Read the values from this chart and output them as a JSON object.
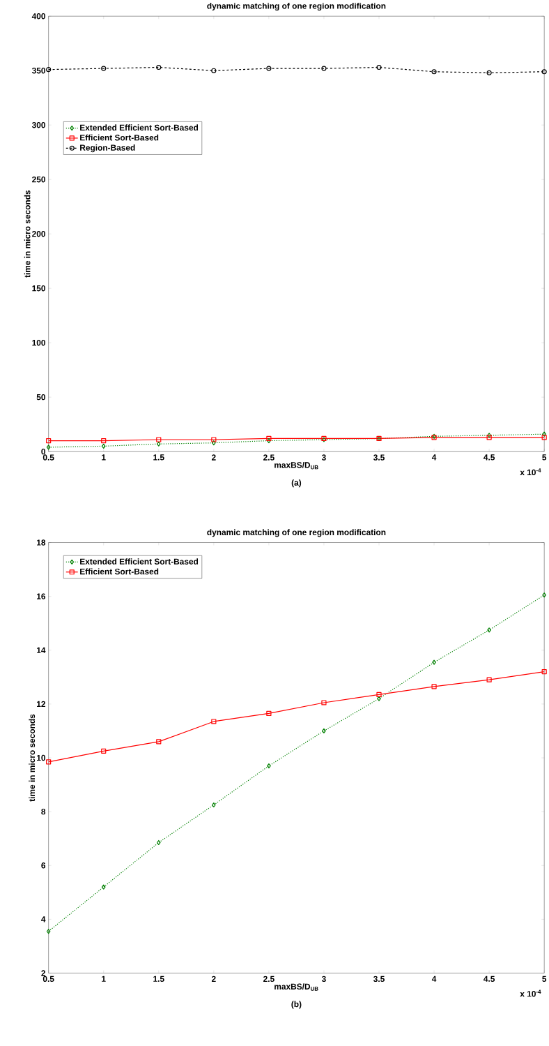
{
  "chart_data": [
    {
      "type": "line",
      "title": "dynamic matching of one region modification",
      "xlabel": "maxBS/D$_{UB}$",
      "ylabel": "time in micro seconds",
      "annotations": [
        "x 10$^{-4}$",
        "(a)"
      ],
      "x": [
        0.5,
        1,
        1.5,
        2,
        2.5,
        3,
        3.5,
        4,
        4.5,
        5
      ],
      "xlim": [
        0.5,
        5
      ],
      "xticks": [
        0.5,
        1,
        1.5,
        2,
        2.5,
        3,
        3.5,
        4,
        4.5,
        5
      ],
      "ylim": [
        0,
        400
      ],
      "yticks": [
        0,
        50,
        100,
        150,
        200,
        250,
        300,
        350,
        400
      ],
      "grid": false,
      "legend": "left",
      "series": [
        {
          "name": "Extended Efficient Sort-Based",
          "color": "#008000",
          "marker": "diamond",
          "line_style": "dotted",
          "values": [
            4,
            5,
            7,
            8,
            10,
            11,
            12,
            14,
            15,
            16
          ]
        },
        {
          "name": "Efficient Sort-Based",
          "color": "#ff0000",
          "marker": "square",
          "line_style": "solid",
          "values": [
            10,
            10,
            11,
            11,
            12,
            12,
            12,
            13,
            13,
            13
          ]
        },
        {
          "name": "Region-Based",
          "color": "#000000",
          "marker": "circle",
          "line_style": "dashed",
          "values": [
            351,
            352,
            353,
            350,
            352,
            352,
            353,
            349,
            348,
            349
          ]
        }
      ]
    },
    {
      "type": "line",
      "title": "dynamic matching of one region modification",
      "xlabel": "maxBS/D$_{UB}$",
      "ylabel": "time in micro seconds",
      "annotations": [
        "x 10$^{-4}$",
        "(b)"
      ],
      "x": [
        0.5,
        1,
        1.5,
        2,
        2.5,
        3,
        3.5,
        4,
        4.5,
        5
      ],
      "xlim": [
        0.5,
        5
      ],
      "xticks": [
        0.5,
        1,
        1.5,
        2,
        2.5,
        3,
        3.5,
        4,
        4.5,
        5
      ],
      "ylim": [
        2,
        18
      ],
      "yticks": [
        2,
        4,
        6,
        8,
        10,
        12,
        14,
        16,
        18
      ],
      "grid": false,
      "legend": "top left",
      "series": [
        {
          "name": "Extended Efficient Sort-Based",
          "color": "#008000",
          "marker": "diamond",
          "line_style": "dotted",
          "values": [
            3.55,
            5.2,
            6.85,
            8.25,
            9.7,
            11.0,
            12.2,
            13.55,
            14.75,
            16.05
          ]
        },
        {
          "name": "Efficient Sort-Based",
          "color": "#ff0000",
          "marker": "square",
          "line_style": "solid",
          "values": [
            9.85,
            10.25,
            10.6,
            11.35,
            11.65,
            12.05,
            12.35,
            12.65,
            12.9,
            13.2
          ]
        }
      ]
    }
  ]
}
